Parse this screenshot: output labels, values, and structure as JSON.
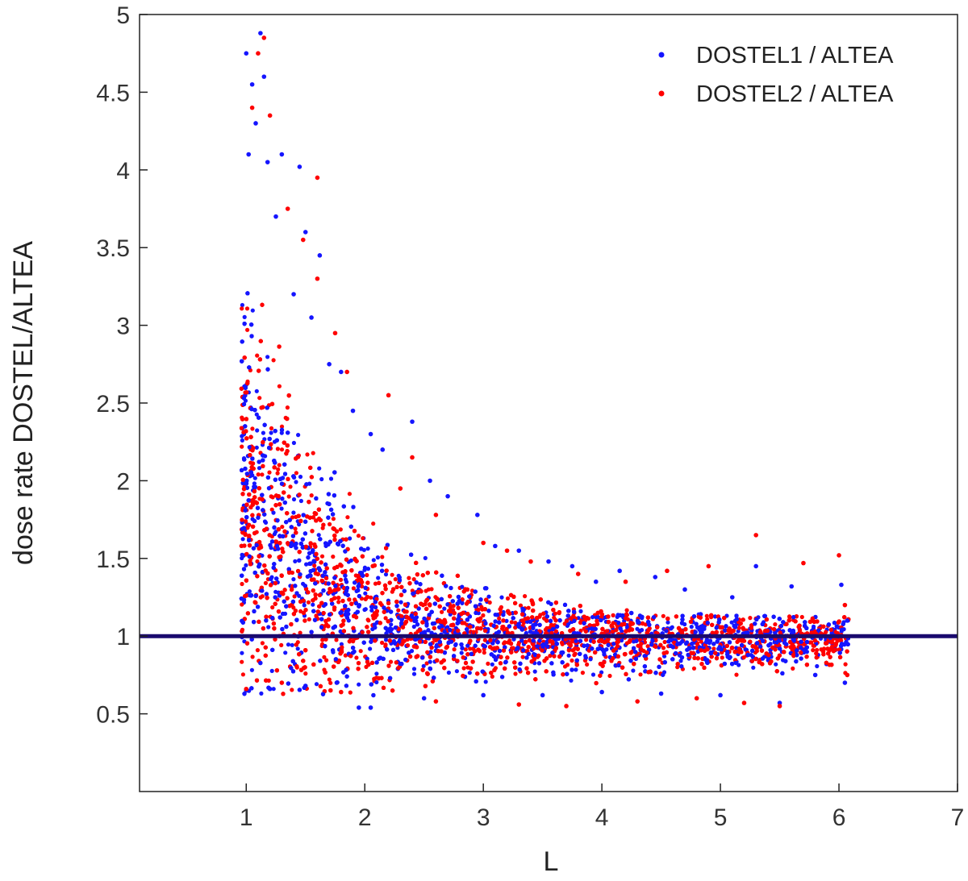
{
  "chart_data": {
    "type": "scatter",
    "xlabel": "L",
    "ylabel": "dose rate DOSTEL/ALTEA",
    "xlim": [
      0.1,
      7
    ],
    "ylim": [
      0,
      5
    ],
    "xticks": [
      1,
      2,
      3,
      4,
      5,
      6,
      7
    ],
    "yticks": [
      0.5,
      1,
      1.5,
      2,
      2.5,
      3,
      3.5,
      4,
      4.5,
      5
    ],
    "xtick_labels": [
      "1",
      "2",
      "3",
      "4",
      "5",
      "6",
      "7"
    ],
    "ytick_labels": [
      "0.5",
      "1",
      "1.5",
      "2",
      "2.5",
      "3",
      "3.5",
      "4",
      "4.5",
      "5"
    ],
    "grid": false,
    "legend_position": "top-right",
    "reference_line": {
      "y": 1,
      "color": "#1a0a6e"
    },
    "series": [
      {
        "name": "DOSTEL1 / ALTEA",
        "color": "#1515ff",
        "points": [
          [
            1.0,
            4.75
          ],
          [
            1.05,
            4.55
          ],
          [
            1.12,
            4.88
          ],
          [
            1.08,
            4.3
          ],
          [
            1.15,
            4.6
          ],
          [
            1.02,
            4.1
          ],
          [
            1.18,
            4.05
          ],
          [
            1.3,
            4.1
          ],
          [
            1.45,
            4.02
          ],
          [
            1.5,
            3.6
          ],
          [
            1.62,
            3.45
          ],
          [
            1.25,
            3.7
          ],
          [
            1.4,
            3.2
          ],
          [
            1.55,
            3.05
          ],
          [
            1.7,
            2.75
          ],
          [
            1.8,
            2.7
          ],
          [
            1.9,
            2.45
          ],
          [
            2.05,
            2.3
          ],
          [
            2.15,
            2.2
          ],
          [
            2.4,
            2.38
          ],
          [
            2.55,
            2.0
          ],
          [
            2.7,
            1.9
          ],
          [
            2.95,
            1.78
          ],
          [
            3.1,
            1.58
          ],
          [
            3.3,
            1.55
          ],
          [
            3.55,
            1.48
          ],
          [
            3.75,
            1.45
          ],
          [
            3.95,
            1.35
          ],
          [
            4.15,
            1.42
          ],
          [
            4.45,
            1.38
          ],
          [
            4.7,
            1.3
          ],
          [
            5.1,
            1.25
          ],
          [
            5.3,
            1.45
          ],
          [
            5.6,
            1.32
          ],
          [
            6.02,
            1.33
          ],
          [
            6.07,
            1.1
          ],
          [
            1.0,
            0.65
          ],
          [
            1.2,
            0.66
          ],
          [
            1.5,
            0.68
          ],
          [
            1.95,
            0.54
          ],
          [
            2.05,
            0.54
          ],
          [
            2.5,
            0.6
          ],
          [
            3.0,
            0.62
          ],
          [
            3.5,
            0.62
          ],
          [
            4.0,
            0.64
          ],
          [
            4.5,
            0.63
          ],
          [
            5.0,
            0.62
          ],
          [
            5.5,
            0.57
          ],
          [
            6.05,
            0.7
          ],
          [
            5.8,
            0.75
          ]
        ]
      },
      {
        "name": "DOSTEL2 / ALTEA",
        "color": "#ff0000",
        "points": [
          [
            1.15,
            4.85
          ],
          [
            1.1,
            4.75
          ],
          [
            1.05,
            4.4
          ],
          [
            1.2,
            4.35
          ],
          [
            1.6,
            3.95
          ],
          [
            1.35,
            3.75
          ],
          [
            1.48,
            3.55
          ],
          [
            1.6,
            3.3
          ],
          [
            1.75,
            2.95
          ],
          [
            1.85,
            2.7
          ],
          [
            2.2,
            2.55
          ],
          [
            2.4,
            2.15
          ],
          [
            2.3,
            1.95
          ],
          [
            2.6,
            1.78
          ],
          [
            3.0,
            1.6
          ],
          [
            3.2,
            1.55
          ],
          [
            3.4,
            1.48
          ],
          [
            3.8,
            1.4
          ],
          [
            4.2,
            1.35
          ],
          [
            4.55,
            1.42
          ],
          [
            4.9,
            1.45
          ],
          [
            5.3,
            1.65
          ],
          [
            5.7,
            1.47
          ],
          [
            6.0,
            1.52
          ],
          [
            6.05,
            1.2
          ],
          [
            1.0,
            0.66
          ],
          [
            1.3,
            0.7
          ],
          [
            1.8,
            0.64
          ],
          [
            2.6,
            0.58
          ],
          [
            3.3,
            0.56
          ],
          [
            3.7,
            0.55
          ],
          [
            4.3,
            0.58
          ],
          [
            4.8,
            0.6
          ],
          [
            5.2,
            0.57
          ],
          [
            5.5,
            0.55
          ],
          [
            6.07,
            0.75
          ]
        ]
      }
    ]
  }
}
